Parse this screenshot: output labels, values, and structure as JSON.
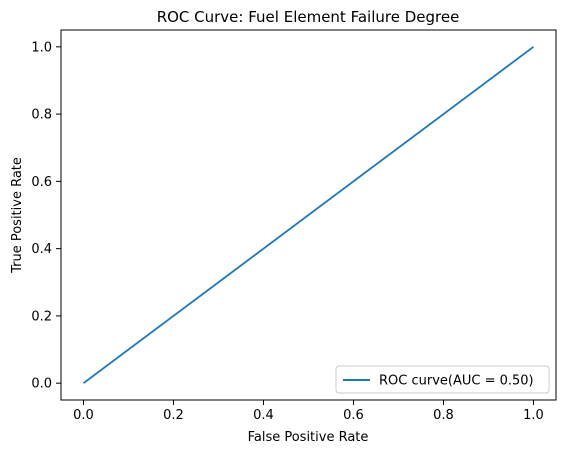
{
  "chart_data": {
    "type": "line",
    "title": "ROC Curve: Fuel Element Failure Degree",
    "xlabel": "False Positive Rate",
    "ylabel": "True Positive Rate",
    "xlim": [
      -0.05,
      1.05
    ],
    "ylim": [
      -0.05,
      1.05
    ],
    "xticks": [
      0.0,
      0.2,
      0.4,
      0.6,
      0.8,
      1.0
    ],
    "yticks": [
      0.0,
      0.2,
      0.4,
      0.6,
      0.8,
      1.0
    ],
    "xtick_labels": [
      "0.0",
      "0.2",
      "0.4",
      "0.6",
      "0.8",
      "1.0"
    ],
    "ytick_labels": [
      "0.0",
      "0.2",
      "0.4",
      "0.6",
      "0.8",
      "1.0"
    ],
    "grid": false,
    "legend_position": "lower-right",
    "series": [
      {
        "name": "ROC curve(AUC = 0.50)",
        "color": "#1f77b4",
        "x": [
          0.0,
          1.0
        ],
        "y": [
          0.0,
          1.0
        ]
      }
    ]
  }
}
